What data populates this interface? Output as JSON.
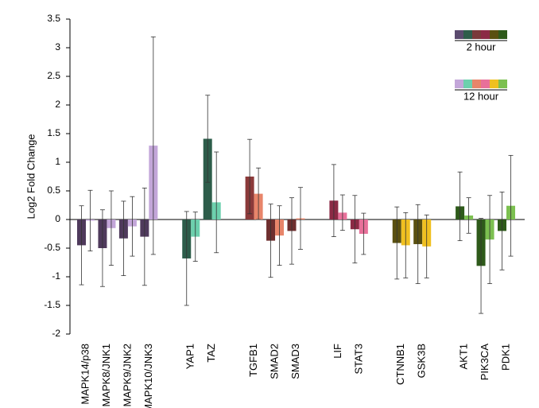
{
  "chart_data": {
    "type": "bar",
    "y_label": "Log2 Fold Change",
    "categories": [
      "MAPK14/p38",
      "MAPK8/JNK1",
      "MAPK9/JNK2",
      "MAPK10/JNK3",
      null,
      "YAP1",
      "TAZ",
      null,
      "TGFB1",
      "SMAD2",
      "SMAD3",
      null,
      "LIF",
      "STAT3",
      null,
      "CTNNB1",
      "GSK3B",
      null,
      "AKT1",
      "PIK3CA",
      "PDK1"
    ],
    "label_colors": [
      "#b22a2a",
      "#b22a2a",
      "#b22a2a",
      "#b22a2a",
      null,
      "#4a6a2a",
      "#4a6a2a",
      null,
      "#4a6a2a",
      "#4a6a2a",
      "#4a6a2a",
      null,
      "#4a6a2a",
      "#4a6a2a",
      null,
      "#4a6a2a",
      "#c02020",
      null,
      "#4a6a2a",
      "#4a6a2a",
      "#4a6a2a"
    ],
    "series": [
      {
        "name": "2 hour",
        "legend_colors": [
          "#5a4a6e",
          "#2d5d4a",
          "#7a3a3a",
          "#8b2a45",
          "#5a5010",
          "#2e5a1a"
        ],
        "colors": [
          "#4f3a5c",
          "#4f3a5c",
          "#4f3a5c",
          "#4f3a5c",
          null,
          "#2d5d4a",
          "#2d5d4a",
          null,
          "#8b3a3a",
          "#6e2f2f",
          "#6e2f2f",
          null,
          "#8b2a45",
          "#8b2a45",
          null,
          "#5a5010",
          "#5a5010",
          null,
          "#2e5a1a",
          "#2e5a1a",
          "#2e5a1a"
        ],
        "values": [
          -0.45,
          -0.5,
          -0.33,
          -0.3,
          null,
          -0.68,
          1.41,
          null,
          0.75,
          -0.37,
          -0.2,
          null,
          0.33,
          -0.17,
          null,
          -0.41,
          -0.43,
          null,
          0.23,
          -0.81,
          -0.2
        ],
        "errors": [
          0.69,
          0.67,
          0.65,
          0.85,
          null,
          0.82,
          0.76,
          null,
          0.65,
          0.64,
          0.58,
          null,
          0.63,
          0.59,
          null,
          0.63,
          0.69,
          null,
          0.6,
          0.83,
          0.68
        ]
      },
      {
        "name": "12 hour",
        "legend_colors": [
          "#c3a6d9",
          "#6cd0ad",
          "#e8856a",
          "#e8709a",
          "#f0c020",
          "#7cc050"
        ],
        "colors": [
          "#c3a6d9",
          "#c3a6d9",
          "#c3a6d9",
          "#c3a6d9",
          null,
          "#6cd0ad",
          "#6cd0ad",
          null,
          "#e8856a",
          "#e8856a",
          "#e8856a",
          null,
          "#e8709a",
          "#e8709a",
          null,
          "#f0c020",
          "#f0c020",
          null,
          "#7cc050",
          "#7cc050",
          "#7cc050"
        ],
        "values": [
          -0.02,
          -0.15,
          -0.12,
          1.29,
          null,
          -0.3,
          0.3,
          null,
          0.45,
          -0.28,
          0.02,
          null,
          0.12,
          -0.25,
          null,
          -0.45,
          -0.47,
          null,
          0.07,
          -0.35,
          0.24
        ],
        "errors": [
          0.53,
          0.65,
          0.52,
          1.9,
          null,
          0.43,
          0.88,
          null,
          0.45,
          0.52,
          0.54,
          null,
          0.31,
          0.36,
          null,
          0.57,
          0.55,
          null,
          0.31,
          0.77,
          0.88
        ]
      }
    ],
    "ylim": [
      -2,
      3.5
    ],
    "yticks": [
      -2,
      -1.5,
      -1,
      -0.5,
      0,
      0.5,
      1,
      1.5,
      2,
      2.5,
      3,
      3.5
    ]
  }
}
